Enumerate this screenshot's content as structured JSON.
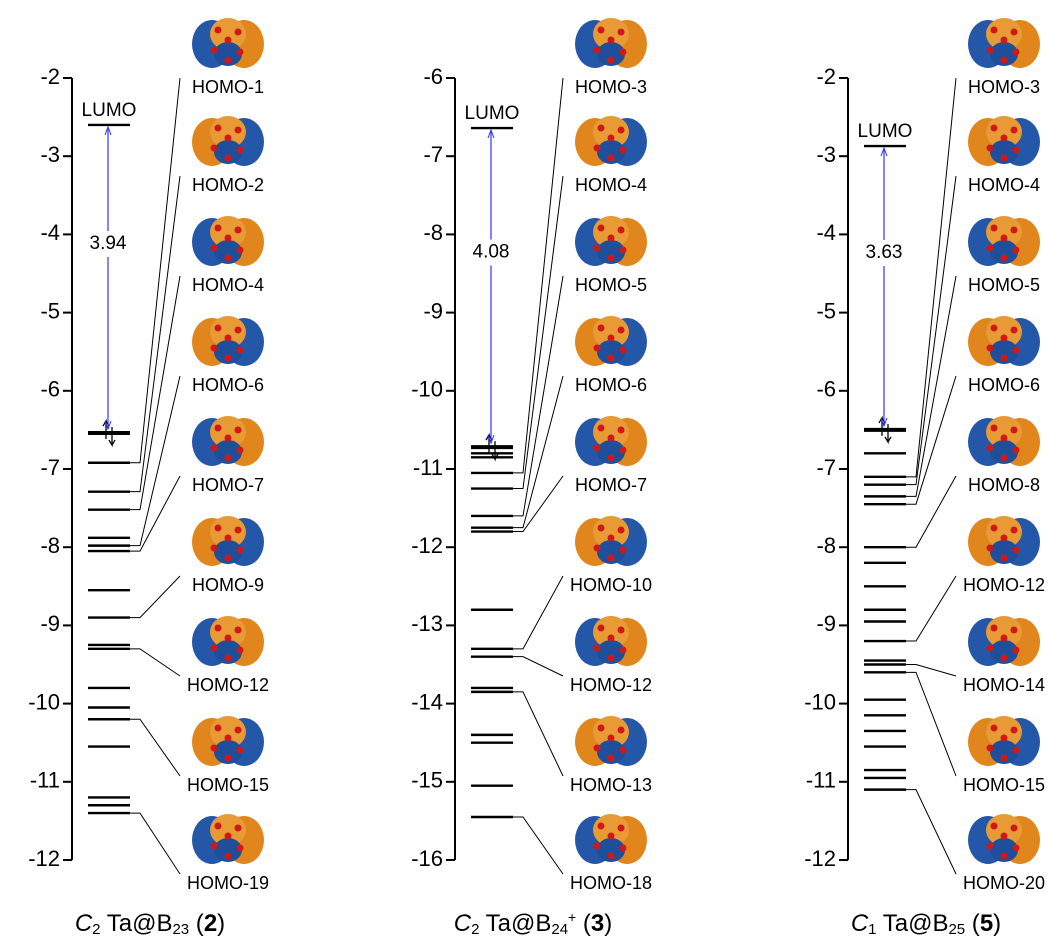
{
  "chart_data": [
    {
      "type": "energy-levels",
      "ylim": [
        -12,
        -2
      ],
      "yticks": [
        -2,
        -3,
        -4,
        -5,
        -6,
        -7,
        -8,
        -9,
        -10,
        -11,
        -12
      ],
      "lumo": -2.6,
      "lumo_label": "LUMO",
      "homo": -6.54,
      "gap": 3.94,
      "gap_color": "#3333ff",
      "levels": [
        -7.88,
        -8.55,
        -9.25,
        -9.8,
        -10.05,
        -10.55,
        -11.2,
        -11.3
      ],
      "orbitals": [
        {
          "label": "HOMO-1",
          "energy": -6.92
        },
        {
          "label": "HOMO-2",
          "energy": -7.29
        },
        {
          "label": "HOMO-4",
          "energy": -7.52
        },
        {
          "label": "HOMO-6",
          "energy": -7.98
        },
        {
          "label": "HOMO-7",
          "energy": -8.05
        },
        {
          "label": "HOMO-9",
          "energy": -8.9
        },
        {
          "label": "HOMO-12",
          "energy": -9.3
        },
        {
          "label": "HOMO-15",
          "energy": -10.2
        },
        {
          "label": "HOMO-19",
          "energy": -11.4
        }
      ],
      "title": [
        {
          "text": "C",
          "style": "italic"
        },
        {
          "text": "2",
          "style": "sub"
        },
        {
          "text": " Ta@B"
        },
        {
          "text": "23",
          "style": "sub"
        },
        {
          "text": " ("
        },
        {
          "text": "2",
          "style": "bold"
        },
        {
          "text": ")"
        }
      ]
    },
    {
      "type": "energy-levels",
      "ylim": [
        -16,
        -6
      ],
      "yticks": [
        -6,
        -7,
        -8,
        -9,
        -10,
        -11,
        -12,
        -13,
        -14,
        -15,
        -16
      ],
      "lumo": -6.64,
      "lumo_label": "LUMO",
      "homo": -10.72,
      "gap": 4.08,
      "gap_color": "#3333ff",
      "levels": [
        -10.8,
        -10.85,
        -12.8,
        -13.8,
        -14.4,
        -14.5,
        -15.05
      ],
      "orbitals": [
        {
          "label": "HOMO-3",
          "energy": -11.05
        },
        {
          "label": "HOMO-4",
          "energy": -11.25
        },
        {
          "label": "HOMO-5",
          "energy": -11.6
        },
        {
          "label": "HOMO-6",
          "energy": -11.75
        },
        {
          "label": "HOMO-7",
          "energy": -11.8
        },
        {
          "label": "HOMO-10",
          "energy": -13.3
        },
        {
          "label": "HOMO-12",
          "energy": -13.4
        },
        {
          "label": "HOMO-13",
          "energy": -13.85
        },
        {
          "label": "HOMO-18",
          "energy": -15.45
        }
      ],
      "title": [
        {
          "text": "C",
          "style": "italic"
        },
        {
          "text": "2",
          "style": "sub"
        },
        {
          "text": " Ta@B"
        },
        {
          "text": "24",
          "style": "sub"
        },
        {
          "text": "+",
          "style": "sup"
        },
        {
          "text": " ("
        },
        {
          "text": "3",
          "style": "bold"
        },
        {
          "text": ")"
        }
      ]
    },
    {
      "type": "energy-levels",
      "ylim": [
        -12,
        -2
      ],
      "yticks": [
        -2,
        -3,
        -4,
        -5,
        -6,
        -7,
        -8,
        -9,
        -10,
        -11,
        -12
      ],
      "lumo": -2.87,
      "lumo_label": "LUMO",
      "homo": -6.5,
      "gap": 3.63,
      "gap_color": "#3333ff",
      "levels": [
        -6.8,
        -8.2,
        -8.5,
        -8.8,
        -8.95,
        -9.45,
        -9.95,
        -10.15,
        -10.35,
        -10.55,
        -10.85,
        -10.95
      ],
      "orbitals": [
        {
          "label": "HOMO-3",
          "energy": -7.1
        },
        {
          "label": "HOMO-4",
          "energy": -7.2
        },
        {
          "label": "HOMO-5",
          "energy": -7.35
        },
        {
          "label": "HOMO-6",
          "energy": -7.45
        },
        {
          "label": "HOMO-8",
          "energy": -8.0
        },
        {
          "label": "HOMO-12",
          "energy": -9.2
        },
        {
          "label": "HOMO-14",
          "energy": -9.5
        },
        {
          "label": "HOMO-15",
          "energy": -9.6
        },
        {
          "label": "HOMO-20",
          "energy": -11.1
        }
      ],
      "title": [
        {
          "text": "C",
          "style": "italic"
        },
        {
          "text": "1",
          "style": "sub"
        },
        {
          "text": " Ta@B"
        },
        {
          "text": "25",
          "style": "sub"
        },
        {
          "text": " ("
        },
        {
          "text": "5",
          "style": "bold"
        },
        {
          "text": ")"
        }
      ]
    }
  ]
}
